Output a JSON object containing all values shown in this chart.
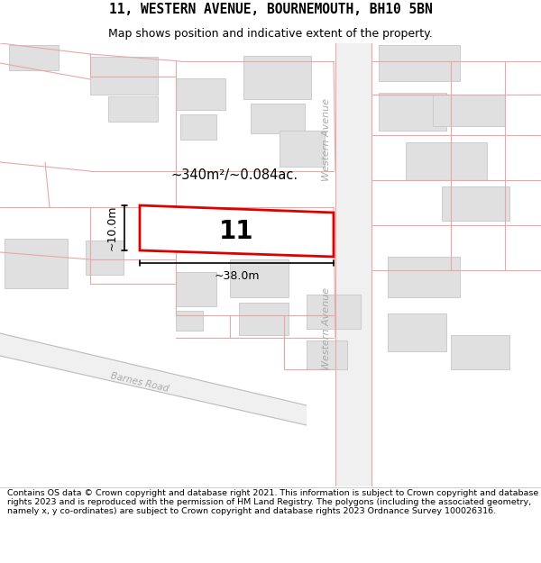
{
  "title": "11, WESTERN AVENUE, BOURNEMOUTH, BH10 5BN",
  "subtitle": "Map shows position and indicative extent of the property.",
  "footer": "Contains OS data © Crown copyright and database right 2021. This information is subject to Crown copyright and database rights 2023 and is reproduced with the permission of HM Land Registry. The polygons (including the associated geometry, namely x, y co-ordinates) are subject to Crown copyright and database rights 2023 Ordnance Survey 100026316.",
  "map_bg": "#ffffff",
  "road_color": "#e8a8a8",
  "building_color": "#e0e0e0",
  "building_edge": "#cccccc",
  "road_stripe_color": "#c8c8c8",
  "highlight_color": "#dd0000",
  "area_text": "~340m²/~0.084ac.",
  "width_text": "~38.0m",
  "height_text": "~10.0m",
  "parcel_label": "11",
  "title_fontsize": 10.5,
  "subtitle_fontsize": 9,
  "footer_fontsize": 6.8,
  "western_avenue_label": "Western Avenue",
  "barnes_road_label": "Barnes Road"
}
